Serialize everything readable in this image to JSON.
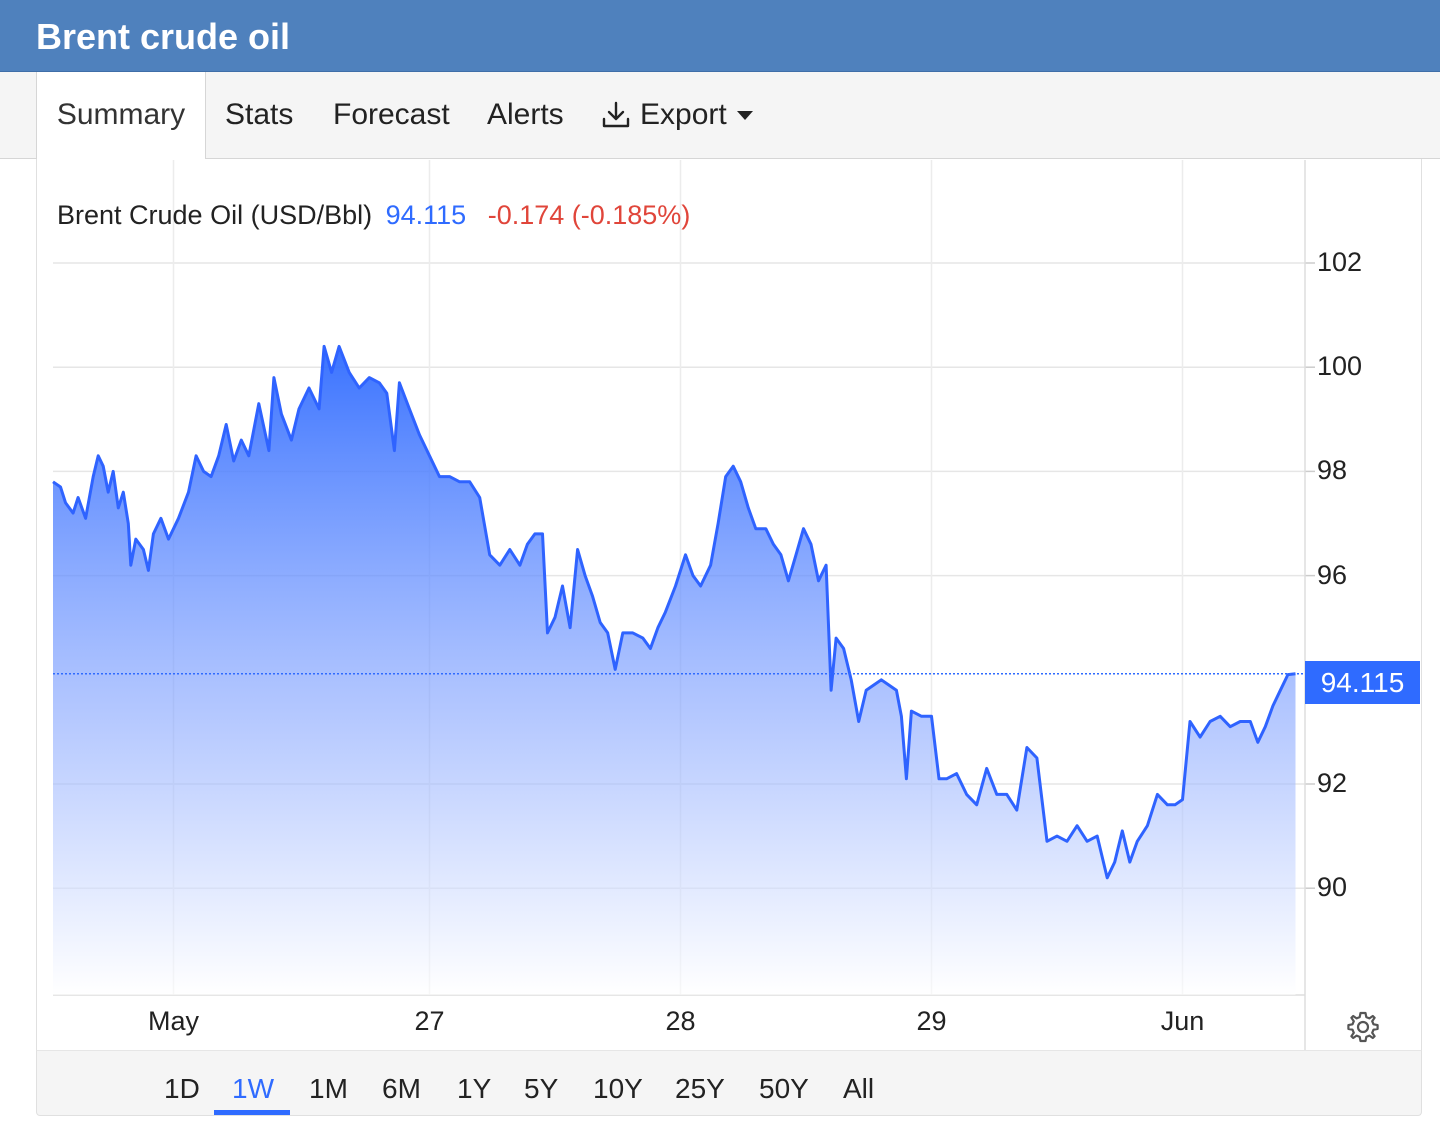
{
  "title_bar": {
    "title": "Brent crude oil"
  },
  "tabs": [
    {
      "label": "Summary",
      "active": true
    },
    {
      "label": "Stats",
      "active": false
    },
    {
      "label": "Forecast",
      "active": false
    },
    {
      "label": "Alerts",
      "active": false
    },
    {
      "label": "Export",
      "active": false,
      "icon": "download-icon",
      "has_dropdown": true
    }
  ],
  "legend": {
    "name": "Brent Crude Oil (USD/Bbl)",
    "price": "94.115",
    "change": "-0.174 (-0.185%)"
  },
  "price_badge": "94.115",
  "range_buttons": [
    "1D",
    "1W",
    "1M",
    "6M",
    "1Y",
    "5Y",
    "10Y",
    "25Y",
    "50Y",
    "All"
  ],
  "active_range": "1W",
  "colors": {
    "accent": "#2f6bff",
    "header": "#4f81bd",
    "negative": "#e0453a"
  },
  "chart_data": {
    "type": "area",
    "title": "",
    "xlabel": "",
    "ylabel": "",
    "ylim": [
      87.9,
      103.8
    ],
    "y_ticks": [
      102,
      100,
      98,
      96,
      94.115,
      92,
      90
    ],
    "y_tick_labels": [
      "102",
      "100",
      "98",
      "96",
      "92",
      "90"
    ],
    "x_tick_labels": [
      "May",
      "27",
      "28",
      "29",
      "Jun"
    ],
    "x_ticks": [
      0.48,
      1.5,
      2.5,
      3.5,
      4.5
    ],
    "x_range": [
      0,
      4.95
    ],
    "grid": true,
    "last_price": 94.115,
    "series": [
      {
        "values": [
          [
            0.0,
            97.8
          ],
          [
            0.03,
            97.7
          ],
          [
            0.05,
            97.4
          ],
          [
            0.08,
            97.2
          ],
          [
            0.1,
            97.5
          ],
          [
            0.13,
            97.1
          ],
          [
            0.16,
            97.9
          ],
          [
            0.18,
            98.3
          ],
          [
            0.2,
            98.1
          ],
          [
            0.22,
            97.6
          ],
          [
            0.24,
            98.0
          ],
          [
            0.26,
            97.3
          ],
          [
            0.28,
            97.6
          ],
          [
            0.3,
            97.0
          ],
          [
            0.31,
            96.2
          ],
          [
            0.33,
            96.7
          ],
          [
            0.36,
            96.5
          ],
          [
            0.38,
            96.1
          ],
          [
            0.4,
            96.8
          ],
          [
            0.43,
            97.1
          ],
          [
            0.46,
            96.7
          ],
          [
            0.5,
            97.1
          ],
          [
            0.54,
            97.6
          ],
          [
            0.57,
            98.3
          ],
          [
            0.6,
            98.0
          ],
          [
            0.63,
            97.9
          ],
          [
            0.66,
            98.3
          ],
          [
            0.69,
            98.9
          ],
          [
            0.72,
            98.2
          ],
          [
            0.75,
            98.6
          ],
          [
            0.78,
            98.3
          ],
          [
            0.82,
            99.3
          ],
          [
            0.86,
            98.4
          ],
          [
            0.88,
            99.8
          ],
          [
            0.91,
            99.1
          ],
          [
            0.95,
            98.6
          ],
          [
            0.98,
            99.2
          ],
          [
            1.02,
            99.6
          ],
          [
            1.06,
            99.2
          ],
          [
            1.08,
            100.4
          ],
          [
            1.11,
            99.9
          ],
          [
            1.14,
            100.4
          ],
          [
            1.18,
            99.9
          ],
          [
            1.22,
            99.6
          ],
          [
            1.26,
            99.8
          ],
          [
            1.3,
            99.7
          ],
          [
            1.33,
            99.5
          ],
          [
            1.36,
            98.4
          ],
          [
            1.38,
            99.7
          ],
          [
            1.42,
            99.2
          ],
          [
            1.46,
            98.7
          ],
          [
            1.5,
            98.3
          ],
          [
            1.54,
            97.9
          ],
          [
            1.58,
            97.9
          ],
          [
            1.62,
            97.8
          ],
          [
            1.66,
            97.8
          ],
          [
            1.7,
            97.5
          ],
          [
            1.74,
            96.4
          ],
          [
            1.78,
            96.2
          ],
          [
            1.82,
            96.5
          ],
          [
            1.86,
            96.2
          ],
          [
            1.89,
            96.6
          ],
          [
            1.92,
            96.8
          ],
          [
            1.95,
            96.8
          ],
          [
            1.97,
            94.9
          ],
          [
            2.0,
            95.2
          ],
          [
            2.03,
            95.8
          ],
          [
            2.06,
            95.0
          ],
          [
            2.09,
            96.5
          ],
          [
            2.12,
            96.0
          ],
          [
            2.15,
            95.6
          ],
          [
            2.18,
            95.1
          ],
          [
            2.21,
            94.9
          ],
          [
            2.24,
            94.2
          ],
          [
            2.27,
            94.9
          ],
          [
            2.31,
            94.9
          ],
          [
            2.35,
            94.8
          ],
          [
            2.38,
            94.6
          ],
          [
            2.41,
            95.0
          ],
          [
            2.44,
            95.3
          ],
          [
            2.48,
            95.8
          ],
          [
            2.52,
            96.4
          ],
          [
            2.55,
            96.0
          ],
          [
            2.58,
            95.8
          ],
          [
            2.62,
            96.2
          ],
          [
            2.65,
            97.0
          ],
          [
            2.68,
            97.9
          ],
          [
            2.71,
            98.1
          ],
          [
            2.74,
            97.8
          ],
          [
            2.77,
            97.3
          ],
          [
            2.8,
            96.9
          ],
          [
            2.84,
            96.9
          ],
          [
            2.87,
            96.6
          ],
          [
            2.9,
            96.4
          ],
          [
            2.93,
            95.9
          ],
          [
            2.96,
            96.4
          ],
          [
            2.99,
            96.9
          ],
          [
            3.02,
            96.6
          ],
          [
            3.05,
            95.9
          ],
          [
            3.08,
            96.2
          ],
          [
            3.1,
            93.8
          ],
          [
            3.12,
            94.8
          ],
          [
            3.15,
            94.6
          ],
          [
            3.18,
            94.0
          ],
          [
            3.21,
            93.2
          ],
          [
            3.24,
            93.8
          ],
          [
            3.27,
            93.9
          ],
          [
            3.3,
            94.0
          ],
          [
            3.33,
            93.9
          ],
          [
            3.36,
            93.8
          ],
          [
            3.38,
            93.3
          ],
          [
            3.4,
            92.1
          ],
          [
            3.42,
            93.4
          ],
          [
            3.46,
            93.3
          ],
          [
            3.5,
            93.3
          ],
          [
            3.53,
            92.1
          ],
          [
            3.56,
            92.1
          ],
          [
            3.6,
            92.2
          ],
          [
            3.64,
            91.8
          ],
          [
            3.68,
            91.6
          ],
          [
            3.72,
            92.3
          ],
          [
            3.76,
            91.8
          ],
          [
            3.8,
            91.8
          ],
          [
            3.84,
            91.5
          ],
          [
            3.88,
            92.7
          ],
          [
            3.92,
            92.5
          ],
          [
            3.96,
            90.9
          ],
          [
            4.0,
            91.0
          ],
          [
            4.04,
            90.9
          ],
          [
            4.08,
            91.2
          ],
          [
            4.12,
            90.9
          ],
          [
            4.16,
            91.0
          ],
          [
            4.2,
            90.2
          ],
          [
            4.23,
            90.5
          ],
          [
            4.26,
            91.1
          ],
          [
            4.29,
            90.5
          ],
          [
            4.32,
            90.9
          ],
          [
            4.36,
            91.2
          ],
          [
            4.4,
            91.8
          ],
          [
            4.44,
            91.6
          ],
          [
            4.47,
            91.6
          ],
          [
            4.5,
            91.7
          ],
          [
            4.53,
            93.2
          ],
          [
            4.57,
            92.9
          ],
          [
            4.61,
            93.2
          ],
          [
            4.65,
            93.3
          ],
          [
            4.69,
            93.1
          ],
          [
            4.73,
            93.2
          ],
          [
            4.77,
            93.2
          ],
          [
            4.8,
            92.8
          ],
          [
            4.83,
            93.1
          ],
          [
            4.86,
            93.5
          ],
          [
            4.89,
            93.8
          ],
          [
            4.92,
            94.1
          ],
          [
            4.95,
            94.115
          ]
        ]
      }
    ]
  }
}
